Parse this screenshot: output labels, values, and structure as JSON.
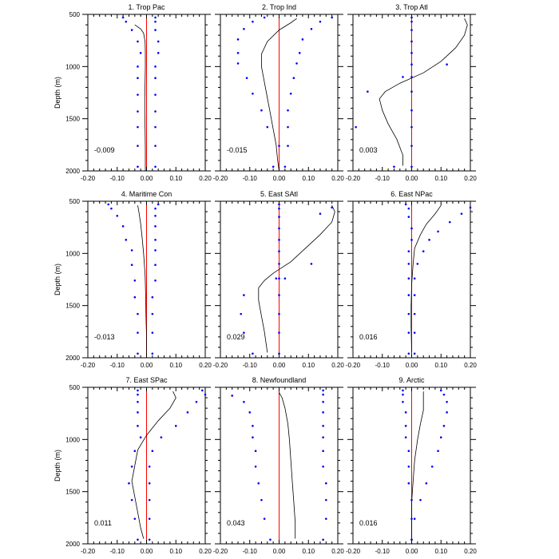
{
  "figure": {
    "ylabel": "Depth (m)",
    "xlim": [
      -0.2,
      0.2
    ],
    "ylim": [
      500,
      2000
    ],
    "xticks": [
      "-0.20",
      "-0.10",
      "0.00",
      "0.10",
      "0.20"
    ],
    "yticks": [
      "500",
      "1000",
      "1500",
      "2000"
    ],
    "zero_line_color": "#ff0000",
    "dot_color": "#0000ff",
    "curve_color": "#000000"
  },
  "chart_data": [
    {
      "type": "scatter+line",
      "title": "1. Trop Pac",
      "value_label": "-0.009",
      "dots": [
        [
          -0.08,
          530
        ],
        [
          -0.07,
          570
        ],
        [
          -0.05,
          650
        ],
        [
          -0.03,
          760
        ],
        [
          -0.02,
          870
        ],
        [
          -0.03,
          1000
        ],
        [
          -0.03,
          1110
        ],
        [
          -0.03,
          1270
        ],
        [
          -0.03,
          1430
        ],
        [
          -0.03,
          1580
        ],
        [
          -0.03,
          1760
        ],
        [
          -0.03,
          1960
        ],
        [
          0.03,
          530
        ],
        [
          0.03,
          570
        ],
        [
          0.03,
          650
        ],
        [
          0.04,
          760
        ],
        [
          0.04,
          870
        ],
        [
          0.03,
          1000
        ],
        [
          0.03,
          1110
        ],
        [
          0.03,
          1270
        ],
        [
          0.03,
          1430
        ],
        [
          0.03,
          1580
        ],
        [
          0.03,
          1760
        ],
        [
          0.03,
          1960
        ]
      ],
      "curve": [
        [
          -0.04,
          600
        ],
        [
          -0.02,
          640
        ],
        [
          -0.01,
          680
        ],
        [
          -0.005,
          760
        ],
        [
          -0.004,
          860
        ],
        [
          -0.004,
          1000
        ],
        [
          -0.005,
          1150
        ],
        [
          -0.006,
          1300
        ],
        [
          -0.006,
          1450
        ],
        [
          -0.005,
          1600
        ],
        [
          -0.004,
          1800
        ],
        [
          -0.004,
          2000
        ]
      ]
    },
    {
      "type": "scatter+line",
      "title": "2. Trop Ind",
      "value_label": "-0.015",
      "dots": [
        [
          -0.05,
          530
        ],
        [
          -0.09,
          570
        ],
        [
          -0.12,
          640
        ],
        [
          -0.14,
          740
        ],
        [
          -0.14,
          870
        ],
        [
          -0.14,
          970
        ],
        [
          -0.11,
          1110
        ],
        [
          -0.09,
          1260
        ],
        [
          -0.06,
          1420
        ],
        [
          -0.04,
          1580
        ],
        [
          0.0,
          1760
        ],
        [
          -0.02,
          1960
        ],
        [
          0.18,
          530
        ],
        [
          0.14,
          570
        ],
        [
          0.11,
          640
        ],
        [
          0.08,
          740
        ],
        [
          0.07,
          870
        ],
        [
          0.06,
          970
        ],
        [
          0.05,
          1110
        ],
        [
          0.04,
          1260
        ],
        [
          0.03,
          1420
        ],
        [
          0.03,
          1580
        ],
        [
          0.03,
          1760
        ],
        [
          0.02,
          1960
        ]
      ],
      "curve": [
        [
          0.06,
          540
        ],
        [
          0.04,
          580
        ],
        [
          0.0,
          650
        ],
        [
          -0.04,
          760
        ],
        [
          -0.06,
          880
        ],
        [
          -0.06,
          1000
        ],
        [
          -0.05,
          1150
        ],
        [
          -0.04,
          1300
        ],
        [
          -0.03,
          1450
        ],
        [
          -0.02,
          1600
        ],
        [
          -0.01,
          1750
        ],
        [
          -0.005,
          1900
        ],
        [
          0.0,
          2000
        ]
      ]
    },
    {
      "type": "scatter+line",
      "title": "3. Trop Atl",
      "value_label": "0.003",
      "dots": [
        [
          0.0,
          530
        ],
        [
          0.0,
          570
        ],
        [
          0.0,
          650
        ],
        [
          0.0,
          760
        ],
        [
          0.0,
          870
        ],
        [
          0.0,
          980
        ],
        [
          0.12,
          980
        ],
        [
          -0.03,
          1100
        ],
        [
          0.0,
          1100
        ],
        [
          -0.15,
          1240
        ],
        [
          0.0,
          1240
        ],
        [
          0.0,
          1420
        ],
        [
          -0.19,
          1580
        ],
        [
          0.0,
          1580
        ],
        [
          0.0,
          1760
        ],
        [
          -0.06,
          1960
        ],
        [
          0.0,
          1960
        ]
      ],
      "curve": [
        [
          0.18,
          540
        ],
        [
          0.19,
          600
        ],
        [
          0.18,
          700
        ],
        [
          0.15,
          820
        ],
        [
          0.1,
          950
        ],
        [
          0.04,
          1060
        ],
        [
          -0.04,
          1160
        ],
        [
          -0.09,
          1240
        ],
        [
          -0.11,
          1310
        ],
        [
          -0.1,
          1420
        ],
        [
          -0.08,
          1550
        ],
        [
          -0.05,
          1700
        ],
        [
          -0.03,
          1850
        ],
        [
          -0.03,
          1950
        ]
      ]
    },
    {
      "type": "scatter+line",
      "title": "4. Maritime Con",
      "value_label": "-0.013",
      "dots": [
        [
          -0.13,
          530
        ],
        [
          -0.12,
          570
        ],
        [
          -0.1,
          640
        ],
        [
          -0.08,
          740
        ],
        [
          -0.07,
          870
        ],
        [
          -0.05,
          970
        ],
        [
          -0.05,
          1110
        ],
        [
          -0.04,
          1260
        ],
        [
          -0.04,
          1420
        ],
        [
          -0.03,
          1580
        ],
        [
          -0.03,
          1760
        ],
        [
          -0.03,
          1960
        ],
        [
          0.04,
          530
        ],
        [
          0.03,
          570
        ],
        [
          0.03,
          640
        ],
        [
          0.03,
          740
        ],
        [
          0.03,
          870
        ],
        [
          0.03,
          970
        ],
        [
          0.03,
          1110
        ],
        [
          0.03,
          1260
        ],
        [
          0.02,
          1420
        ],
        [
          0.02,
          1580
        ],
        [
          0.02,
          1760
        ],
        [
          0.02,
          1960
        ]
      ],
      "curve": [
        [
          -0.03,
          540
        ],
        [
          -0.025,
          620
        ],
        [
          -0.02,
          720
        ],
        [
          -0.015,
          850
        ],
        [
          -0.01,
          1000
        ],
        [
          -0.005,
          1200
        ],
        [
          -0.003,
          1400
        ],
        [
          -0.002,
          1600
        ],
        [
          0.0,
          1800
        ],
        [
          0.0,
          2000
        ]
      ]
    },
    {
      "type": "scatter+line",
      "title": "5. East SAtl",
      "value_label": "0.029",
      "dots": [
        [
          0.0,
          530
        ],
        [
          0.0,
          570
        ],
        [
          0.0,
          650
        ],
        [
          0.0,
          760
        ],
        [
          0.0,
          870
        ],
        [
          0.0,
          980
        ],
        [
          0.0,
          1100
        ],
        [
          0.0,
          1240
        ],
        [
          0.0,
          1400
        ],
        [
          0.0,
          1580
        ],
        [
          0.0,
          1760
        ],
        [
          0.0,
          1960
        ],
        [
          0.18,
          560
        ],
        [
          0.14,
          620
        ],
        [
          0.11,
          1100
        ],
        [
          -0.01,
          1240
        ],
        [
          0.02,
          1240
        ],
        [
          -0.12,
          1400
        ],
        [
          -0.13,
          1580
        ],
        [
          -0.12,
          1760
        ],
        [
          -0.09,
          1960
        ]
      ],
      "curve": [
        [
          0.18,
          540
        ],
        [
          0.19,
          600
        ],
        [
          0.18,
          700
        ],
        [
          0.14,
          820
        ],
        [
          0.09,
          950
        ],
        [
          0.04,
          1080
        ],
        [
          -0.02,
          1190
        ],
        [
          -0.05,
          1260
        ],
        [
          -0.07,
          1330
        ],
        [
          -0.07,
          1450
        ],
        [
          -0.06,
          1600
        ],
        [
          -0.05,
          1750
        ],
        [
          -0.04,
          1950
        ]
      ]
    },
    {
      "type": "scatter+line",
      "title": "6. East NPac",
      "value_label": "0.016",
      "dots": [
        [
          -0.02,
          530
        ],
        [
          -0.01,
          570
        ],
        [
          -0.01,
          650
        ],
        [
          0.0,
          760
        ],
        [
          0.0,
          870
        ],
        [
          -0.01,
          980
        ],
        [
          -0.01,
          1100
        ],
        [
          -0.01,
          1240
        ],
        [
          -0.01,
          1400
        ],
        [
          -0.01,
          1580
        ],
        [
          -0.01,
          1760
        ],
        [
          -0.01,
          1960
        ],
        [
          0.2,
          560
        ],
        [
          0.17,
          620
        ],
        [
          0.13,
          700
        ],
        [
          0.09,
          790
        ],
        [
          0.06,
          870
        ],
        [
          0.04,
          980
        ],
        [
          0.02,
          1100
        ],
        [
          0.01,
          1240
        ],
        [
          0.01,
          1400
        ],
        [
          0.01,
          1580
        ],
        [
          0.01,
          1760
        ],
        [
          0.01,
          1960
        ]
      ],
      "curve": [
        [
          0.1,
          540
        ],
        [
          0.08,
          620
        ],
        [
          0.05,
          720
        ],
        [
          0.03,
          820
        ],
        [
          0.01,
          950
        ],
        [
          0.005,
          1100
        ],
        [
          0.0,
          1300
        ],
        [
          -0.002,
          1500
        ],
        [
          -0.002,
          1700
        ],
        [
          0.0,
          1950
        ]
      ]
    },
    {
      "type": "scatter+line",
      "title": "7. East SPac",
      "value_label": "0.011",
      "dots": [
        [
          -0.03,
          530
        ],
        [
          -0.03,
          570
        ],
        [
          -0.03,
          640
        ],
        [
          -0.03,
          740
        ],
        [
          -0.03,
          870
        ],
        [
          -0.02,
          980
        ],
        [
          -0.04,
          1110
        ],
        [
          -0.05,
          1260
        ],
        [
          -0.06,
          1420
        ],
        [
          -0.05,
          1580
        ],
        [
          -0.04,
          1760
        ],
        [
          -0.03,
          1960
        ],
        [
          0.19,
          530
        ],
        [
          0.2,
          570
        ],
        [
          0.17,
          640
        ],
        [
          0.14,
          740
        ],
        [
          0.1,
          870
        ],
        [
          0.05,
          980
        ],
        [
          0.02,
          1110
        ],
        [
          0.01,
          1260
        ],
        [
          0.01,
          1420
        ],
        [
          0.01,
          1580
        ],
        [
          0.01,
          1760
        ],
        [
          0.01,
          1960
        ]
      ],
      "curve": [
        [
          0.09,
          540
        ],
        [
          0.1,
          600
        ],
        [
          0.08,
          700
        ],
        [
          0.04,
          820
        ],
        [
          0.0,
          960
        ],
        [
          -0.03,
          1100
        ],
        [
          -0.04,
          1250
        ],
        [
          -0.05,
          1400
        ],
        [
          -0.04,
          1550
        ],
        [
          -0.03,
          1700
        ],
        [
          -0.02,
          1850
        ],
        [
          -0.01,
          1950
        ]
      ]
    },
    {
      "type": "scatter+line",
      "title": "8. Newfoundland",
      "value_label": "0.043",
      "dots": [
        [
          -0.16,
          580
        ],
        [
          -0.12,
          640
        ],
        [
          -0.1,
          740
        ],
        [
          -0.09,
          870
        ],
        [
          -0.09,
          980
        ],
        [
          -0.08,
          1110
        ],
        [
          -0.08,
          1260
        ],
        [
          -0.07,
          1420
        ],
        [
          -0.06,
          1580
        ],
        [
          -0.05,
          1760
        ],
        [
          -0.03,
          1960
        ],
        [
          0.15,
          530
        ],
        [
          0.15,
          570
        ],
        [
          0.15,
          640
        ],
        [
          0.15,
          740
        ],
        [
          0.15,
          870
        ],
        [
          0.15,
          980
        ],
        [
          0.15,
          1110
        ],
        [
          0.15,
          1260
        ],
        [
          0.16,
          1420
        ],
        [
          0.16,
          1580
        ],
        [
          0.16,
          1760
        ],
        [
          0.15,
          1960
        ]
      ],
      "curve": [
        [
          0.0,
          550
        ],
        [
          0.01,
          600
        ],
        [
          0.02,
          700
        ],
        [
          0.03,
          850
        ],
        [
          0.035,
          1000
        ],
        [
          0.04,
          1200
        ],
        [
          0.045,
          1400
        ],
        [
          0.05,
          1600
        ],
        [
          0.055,
          1800
        ],
        [
          0.055,
          1950
        ]
      ]
    },
    {
      "type": "scatter+line",
      "title": "9. Arctic",
      "value_label": "0.016",
      "dots": [
        [
          -0.03,
          530
        ],
        [
          -0.03,
          570
        ],
        [
          -0.03,
          640
        ],
        [
          -0.02,
          740
        ],
        [
          -0.02,
          870
        ],
        [
          -0.02,
          980
        ],
        [
          -0.01,
          1110
        ],
        [
          -0.01,
          1260
        ],
        [
          -0.01,
          1420
        ],
        [
          0.0,
          1580
        ],
        [
          0.0,
          1760
        ],
        [
          0.0,
          1960
        ],
        [
          0.1,
          530
        ],
        [
          0.11,
          570
        ],
        [
          0.12,
          640
        ],
        [
          0.12,
          740
        ],
        [
          0.11,
          870
        ],
        [
          0.1,
          980
        ],
        [
          0.09,
          1110
        ],
        [
          0.07,
          1260
        ],
        [
          0.05,
          1420
        ],
        [
          0.03,
          1580
        ],
        [
          0.01,
          1760
        ],
        [
          0.0,
          1960
        ]
      ],
      "curve": [
        [
          0.04,
          540
        ],
        [
          0.04,
          620
        ],
        [
          0.04,
          720
        ],
        [
          0.03,
          850
        ],
        [
          0.02,
          1000
        ],
        [
          0.01,
          1200
        ],
        [
          0.005,
          1400
        ],
        [
          0.0,
          1600
        ],
        [
          0.0,
          1800
        ],
        [
          0.0,
          1950
        ]
      ]
    }
  ]
}
